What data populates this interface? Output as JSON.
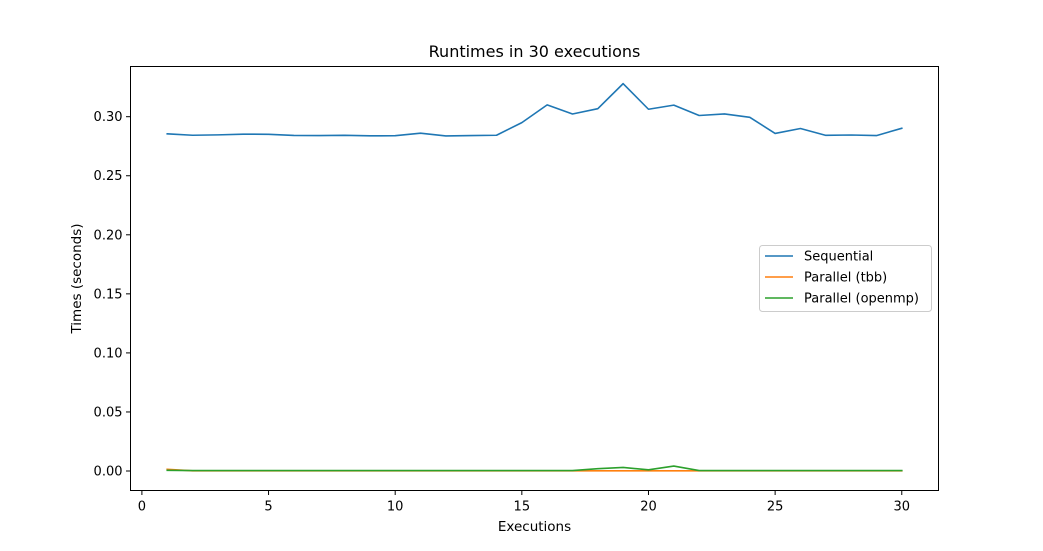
{
  "chart_data": {
    "type": "line",
    "title": "Runtimes in 30 executions",
    "xlabel": "Executions",
    "ylabel": "Times (seconds)",
    "xlim": [
      -0.45,
      31.45
    ],
    "ylim": [
      -0.0165,
      0.3425
    ],
    "xticks": [
      0,
      5,
      10,
      15,
      20,
      25,
      30
    ],
    "xtick_labels": [
      "0",
      "5",
      "10",
      "15",
      "20",
      "25",
      "30"
    ],
    "yticks": [
      0.0,
      0.05,
      0.1,
      0.15,
      0.2,
      0.25,
      0.3
    ],
    "ytick_labels": [
      "0.00",
      "0.05",
      "0.10",
      "0.15",
      "0.20",
      "0.25",
      "0.30"
    ],
    "grid": false,
    "legend_position": "center-right",
    "x": [
      1,
      2,
      3,
      4,
      5,
      6,
      7,
      8,
      9,
      10,
      11,
      12,
      13,
      14,
      15,
      16,
      17,
      18,
      19,
      20,
      21,
      22,
      23,
      24,
      25,
      26,
      27,
      28,
      29,
      30
    ],
    "series": [
      {
        "name": "Sequential",
        "color": "#1f77b4",
        "values": [
          0.2855,
          0.2843,
          0.2846,
          0.2852,
          0.2851,
          0.2841,
          0.284,
          0.2842,
          0.2838,
          0.2839,
          0.286,
          0.2837,
          0.284,
          0.2843,
          0.295,
          0.31,
          0.3023,
          0.3068,
          0.328,
          0.3063,
          0.3098,
          0.301,
          0.3023,
          0.2995,
          0.2858,
          0.29,
          0.2842,
          0.2845,
          0.284,
          0.2902
        ]
      },
      {
        "name": "Parallel (tbb)",
        "color": "#ff7f0e",
        "values": [
          0.0015,
          0.0002,
          0.0002,
          0.0002,
          0.0002,
          0.0002,
          0.0002,
          0.0002,
          0.0002,
          0.0002,
          0.0002,
          0.0002,
          0.0002,
          0.0002,
          0.0002,
          0.0002,
          0.0002,
          0.0002,
          0.0002,
          0.0002,
          0.0002,
          0.0002,
          0.0002,
          0.0002,
          0.0002,
          0.0002,
          0.0002,
          0.0002,
          0.0002,
          0.0002
        ]
      },
      {
        "name": "Parallel (openmp)",
        "color": "#2ca02c",
        "values": [
          0.0006,
          0.0004,
          0.0004,
          0.0004,
          0.0004,
          0.0004,
          0.0004,
          0.0004,
          0.0004,
          0.0004,
          0.0004,
          0.0004,
          0.0004,
          0.0004,
          0.0004,
          0.0004,
          0.0004,
          0.002,
          0.003,
          0.001,
          0.0042,
          0.0004,
          0.0004,
          0.0004,
          0.0004,
          0.0004,
          0.0004,
          0.0004,
          0.0004,
          0.0004
        ]
      }
    ]
  }
}
